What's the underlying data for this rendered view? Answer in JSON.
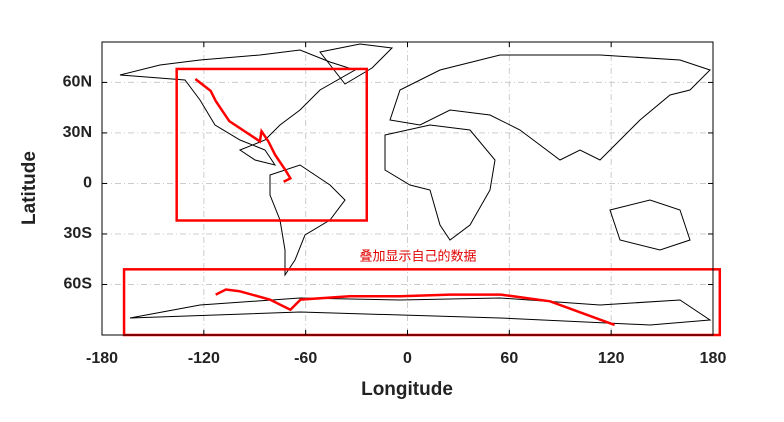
{
  "chart_data": {
    "type": "map",
    "xlabel": "Longitude",
    "ylabel": "Latitude",
    "xlim": [
      -180,
      180
    ],
    "ylim": [
      -90,
      84
    ],
    "xticks": [
      -180,
      -120,
      -60,
      0,
      60,
      120,
      180
    ],
    "yticks": [
      {
        "value": -60,
        "label": "60S"
      },
      {
        "value": -30,
        "label": "30S"
      },
      0,
      {
        "value": 30,
        "label": "30N"
      },
      {
        "value": 60,
        "label": "60N"
      }
    ],
    "grid": true,
    "annotation": "叠加显示自己的数据",
    "boxes": [
      {
        "color": "#ff0000",
        "lon": [
          -136,
          -24
        ],
        "lat": [
          -22,
          68
        ]
      },
      {
        "color": "#ff0000",
        "lon": [
          -167,
          184
        ],
        "lat": [
          -90,
          -51
        ]
      }
    ],
    "series": [
      {
        "color": "#ff0000",
        "x": [
          -125,
          -116,
          -113,
          -105,
          -96,
          -87,
          -86,
          -82,
          -78,
          -72,
          -69,
          -73
        ],
        "values": [
          62,
          55,
          49,
          37,
          31,
          25,
          31,
          25,
          17,
          8,
          3,
          1
        ]
      },
      {
        "color": "#ff0000",
        "x": [
          -113,
          -107,
          -99,
          -81,
          -69,
          -63,
          -34,
          -4,
          25,
          55,
          84,
          122
        ],
        "values": [
          -66,
          -63,
          -64,
          -69,
          -75,
          -69,
          -67,
          -67,
          -66,
          -66,
          -70,
          -84
        ]
      }
    ]
  }
}
